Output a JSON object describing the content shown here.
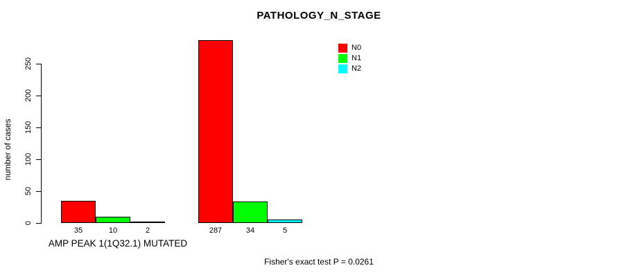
{
  "title": "PATHOLOGY_N_STAGE",
  "footer": "Fisher's exact test P = 0.0261",
  "chart_data": {
    "type": "bar",
    "title": "PATHOLOGY_N_STAGE",
    "xlabel": "",
    "ylabel": "number of cases",
    "ylim": [
      0,
      250
    ],
    "yticks": [
      0,
      50,
      100,
      150,
      200,
      250
    ],
    "grid": false,
    "legend_position": "top-right-inside",
    "categories": [
      "AMP PEAK 1(1Q32.1) MUTATED",
      ""
    ],
    "series": [
      {
        "name": "N0",
        "color": "#FF0000",
        "values": [
          35,
          287
        ]
      },
      {
        "name": "N1",
        "color": "#00FF00",
        "values": [
          10,
          34
        ]
      },
      {
        "name": "N2",
        "color": "#00FFFF",
        "values": [
          2,
          5
        ]
      }
    ],
    "groups": [
      {
        "label": "AMP PEAK 1(1Q32.1) MUTATED",
        "values": [
          35,
          10,
          2
        ]
      },
      {
        "label": "",
        "values": [
          287,
          34,
          5
        ]
      }
    ],
    "bar_value_labels": [
      35,
      10,
      2,
      287,
      34,
      5
    ],
    "annotation": "Fisher's exact test P = 0.0261",
    "axis_color": "#000000",
    "background_color": "#ffffff"
  }
}
